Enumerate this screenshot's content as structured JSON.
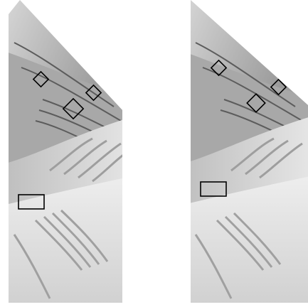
{
  "figure": {
    "panels": [
      {
        "id": "left",
        "description": "hillshade-terrain",
        "highlight_boxes": 4
      },
      {
        "id": "right",
        "description": "hillshade-terrain",
        "highlight_boxes": 4
      }
    ],
    "colors": {
      "background": "#ffffff",
      "terrain_light": "#f2f2f2",
      "terrain_mid": "#bdbdbd",
      "terrain_dark": "#6e6e6e",
      "box_stroke": "#000000"
    }
  }
}
